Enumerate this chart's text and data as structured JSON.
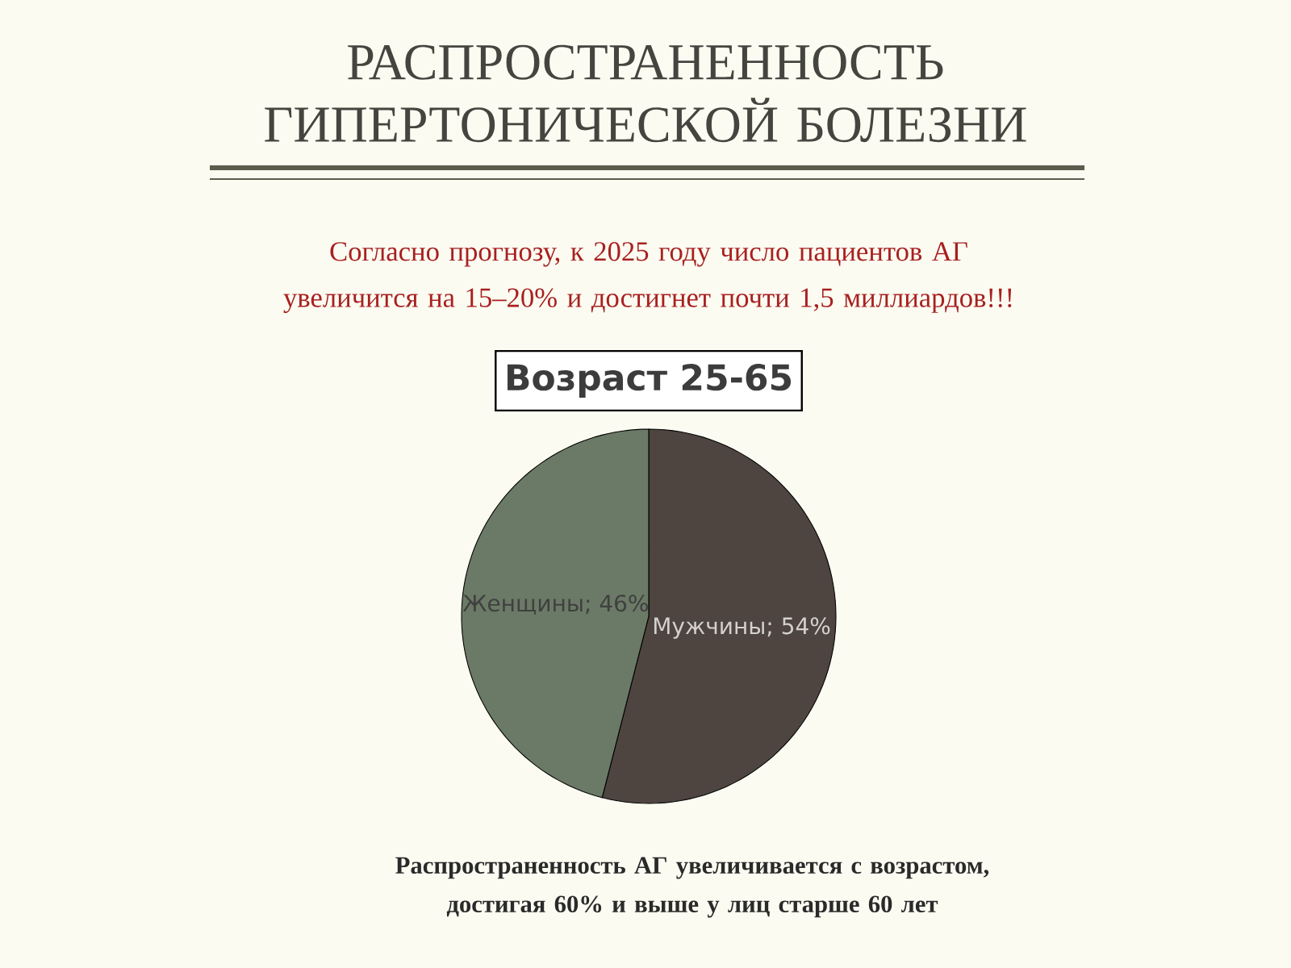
{
  "chart_data": {
    "type": "pie",
    "title": "РАСПРОСТРАНЕННОСТЬ ГИПЕРТОНИЧЕСКОЙ БОЛЕЗНИ",
    "subtitle": "Согласно прогнозу, к 2025 году число пациентов АГ увеличится на 15–20% и достигнет почти 1,5 миллиардов!!!",
    "categories": [
      "Мужчины",
      "Женщины"
    ],
    "values": [
      54,
      46
    ],
    "colors": [
      "#4e4540",
      "#6b7a66"
    ],
    "value_labels": [
      "; 54%",
      "; 46%"
    ],
    "annotations": [
      "Возраст 25-65",
      "Распространенность АГ увеличивается с возрастом, достигая 60% и выше у лиц старше 60 лет"
    ]
  }
}
